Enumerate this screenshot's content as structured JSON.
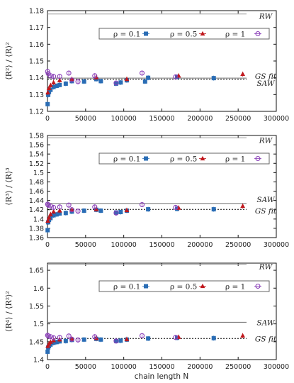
{
  "xlabel": "chain length N",
  "colors": {
    "rho_0.1": "#2a6db5",
    "rho_0.5": "#c0181d",
    "rho_1": "#8a3fb8",
    "rw": "#9a9a9a",
    "saw": "#6e6e6e",
    "gs": "#000000",
    "frame": "#111111"
  },
  "legend_labels": [
    "ρ = 0.1",
    "ρ = 0.5",
    "ρ = 1"
  ],
  "chart_data": [
    {
      "type": "scatter",
      "ylabel": "⟨R²⟩ / ⟨R⟩²",
      "xlim": [
        0,
        300000
      ],
      "ylim": [
        1.12,
        1.18
      ],
      "xticks": [
        "0",
        "50000",
        "100000",
        "150000",
        "200000",
        "250000",
        "300000"
      ],
      "yticks": [
        "1.12",
        "1.13",
        "1.14",
        "1.15",
        "1.16",
        "1.17",
        "1.18"
      ],
      "legend_placement": "top-right",
      "reference_lines": [
        {
          "label": "RW",
          "y": 1.178,
          "style": "rw"
        },
        {
          "label": "SAW",
          "y": 1.1398,
          "style": "saw"
        },
        {
          "label": "GS fit",
          "y": 1.1391,
          "style": "gs"
        }
      ],
      "series": [
        {
          "name": "ρ = 0.1",
          "marker": "square",
          "x": [
            200,
            1000,
            2000,
            4000,
            8000,
            12000,
            16000,
            24000,
            32000,
            48000,
            64000,
            70000,
            90000,
            96000,
            104000,
            128000,
            132000,
            170000,
            218000
          ],
          "y": [
            1.1243,
            1.1298,
            1.1315,
            1.1328,
            1.1345,
            1.1352,
            1.1357,
            1.1365,
            1.138,
            1.1378,
            1.1392,
            1.138,
            1.1365,
            1.1372,
            1.1385,
            1.1378,
            1.14,
            1.1405,
            1.1398
          ]
        },
        {
          "name": "ρ = 0.5",
          "marker": "triangle",
          "x": [
            500,
            2000,
            4000,
            8000,
            16000,
            32000,
            64000,
            104000,
            172000,
            256000
          ],
          "y": [
            1.1312,
            1.1338,
            1.1355,
            1.1372,
            1.1385,
            1.1392,
            1.1402,
            1.1392,
            1.1412,
            1.1422
          ]
        },
        {
          "name": "ρ = 1",
          "marker": "circle",
          "x": [
            200,
            1000,
            4000,
            8000,
            16000,
            28000,
            32000,
            40000,
            62000,
            90000,
            124000,
            168000
          ],
          "y": [
            1.1437,
            1.1425,
            1.1412,
            1.1408,
            1.1408,
            1.1428,
            1.1387,
            1.1377,
            1.1412,
            1.1369,
            1.1428,
            1.1405
          ]
        }
      ]
    },
    {
      "type": "scatter",
      "ylabel": "⟨R³⟩ / ⟨R⟩³",
      "xlim": [
        0,
        300000
      ],
      "ylim": [
        1.36,
        1.58
      ],
      "xticks": [
        "0",
        "50000",
        "100000",
        "150000",
        "200000",
        "250000",
        "300000"
      ],
      "yticks": [
        "1.36",
        "1.38",
        "1.4",
        "1.42",
        "1.44",
        "1.46",
        "1.48",
        "1.5",
        "1.52",
        "1.54",
        "1.56",
        "1.58"
      ],
      "legend_placement": "top-right",
      "reference_lines": [
        {
          "label": "RW",
          "y": 1.575,
          "style": "rw"
        },
        {
          "label": "SAW",
          "y": 1.4335,
          "style": "saw"
        },
        {
          "label": "GS fit",
          "y": 1.4208,
          "style": "gs"
        }
      ],
      "series": [
        {
          "name": "ρ = 0.1",
          "marker": "square",
          "x": [
            200,
            1000,
            2000,
            4000,
            8000,
            12000,
            16000,
            24000,
            32000,
            48000,
            64000,
            70000,
            90000,
            96000,
            104000,
            132000,
            170000,
            218000
          ],
          "y": [
            1.376,
            1.393,
            1.398,
            1.402,
            1.408,
            1.41,
            1.412,
            1.413,
            1.416,
            1.418,
            1.42,
            1.418,
            1.414,
            1.415,
            1.418,
            1.421,
            1.422,
            1.421
          ]
        },
        {
          "name": "ρ = 0.5",
          "marker": "triangle",
          "x": [
            500,
            2000,
            4000,
            8000,
            16000,
            32000,
            64000,
            104000,
            172000,
            256000
          ],
          "y": [
            1.396,
            1.403,
            1.41,
            1.416,
            1.418,
            1.42,
            1.421,
            1.419,
            1.424,
            1.428
          ]
        },
        {
          "name": "ρ = 1",
          "marker": "circle",
          "x": [
            200,
            1000,
            4000,
            8000,
            16000,
            28000,
            32000,
            40000,
            62000,
            90000,
            124000,
            168000
          ],
          "y": [
            1.432,
            1.43,
            1.428,
            1.425,
            1.426,
            1.43,
            1.42,
            1.417,
            1.426,
            1.413,
            1.431,
            1.425
          ]
        }
      ]
    },
    {
      "type": "scatter",
      "ylabel": "⟨R⁴⟩ / ⟨R²⟩²",
      "xlim": [
        0,
        300000
      ],
      "ylim": [
        1.4,
        1.67
      ],
      "xticks": [
        "0",
        "50000",
        "100000",
        "150000",
        "200000",
        "250000",
        "300000"
      ],
      "yticks": [
        "1.4",
        "1.45",
        "1.5",
        "1.55",
        "1.6",
        "1.65"
      ],
      "legend_placement": "top-right",
      "reference_lines": [
        {
          "label": "RW",
          "y": 1.6667,
          "style": "rw"
        },
        {
          "label": "SAW",
          "y": 1.5045,
          "style": "saw"
        },
        {
          "label": "GS fit",
          "y": 1.459,
          "style": "gs"
        }
      ],
      "series": [
        {
          "name": "ρ = 0.1",
          "marker": "square",
          "x": [
            200,
            1000,
            2000,
            4000,
            8000,
            12000,
            16000,
            24000,
            32000,
            48000,
            64000,
            70000,
            90000,
            96000,
            104000,
            132000,
            170000,
            218000
          ],
          "y": [
            1.422,
            1.434,
            1.438,
            1.442,
            1.447,
            1.449,
            1.451,
            1.452,
            1.455,
            1.456,
            1.458,
            1.456,
            1.452,
            1.453,
            1.456,
            1.459,
            1.461,
            1.46
          ]
        },
        {
          "name": "ρ = 0.5",
          "marker": "triangle",
          "x": [
            500,
            2000,
            4000,
            8000,
            16000,
            32000,
            64000,
            104000,
            172000,
            256000
          ],
          "y": [
            1.438,
            1.444,
            1.449,
            1.454,
            1.456,
            1.458,
            1.46,
            1.457,
            1.463,
            1.467
          ]
        },
        {
          "name": "ρ = 1",
          "marker": "circle",
          "x": [
            200,
            1000,
            4000,
            8000,
            16000,
            28000,
            32000,
            40000,
            62000,
            90000,
            124000,
            168000
          ],
          "y": [
            1.468,
            1.466,
            1.464,
            1.461,
            1.462,
            1.466,
            1.457,
            1.455,
            1.464,
            1.452,
            1.467,
            1.462
          ]
        }
      ]
    }
  ]
}
